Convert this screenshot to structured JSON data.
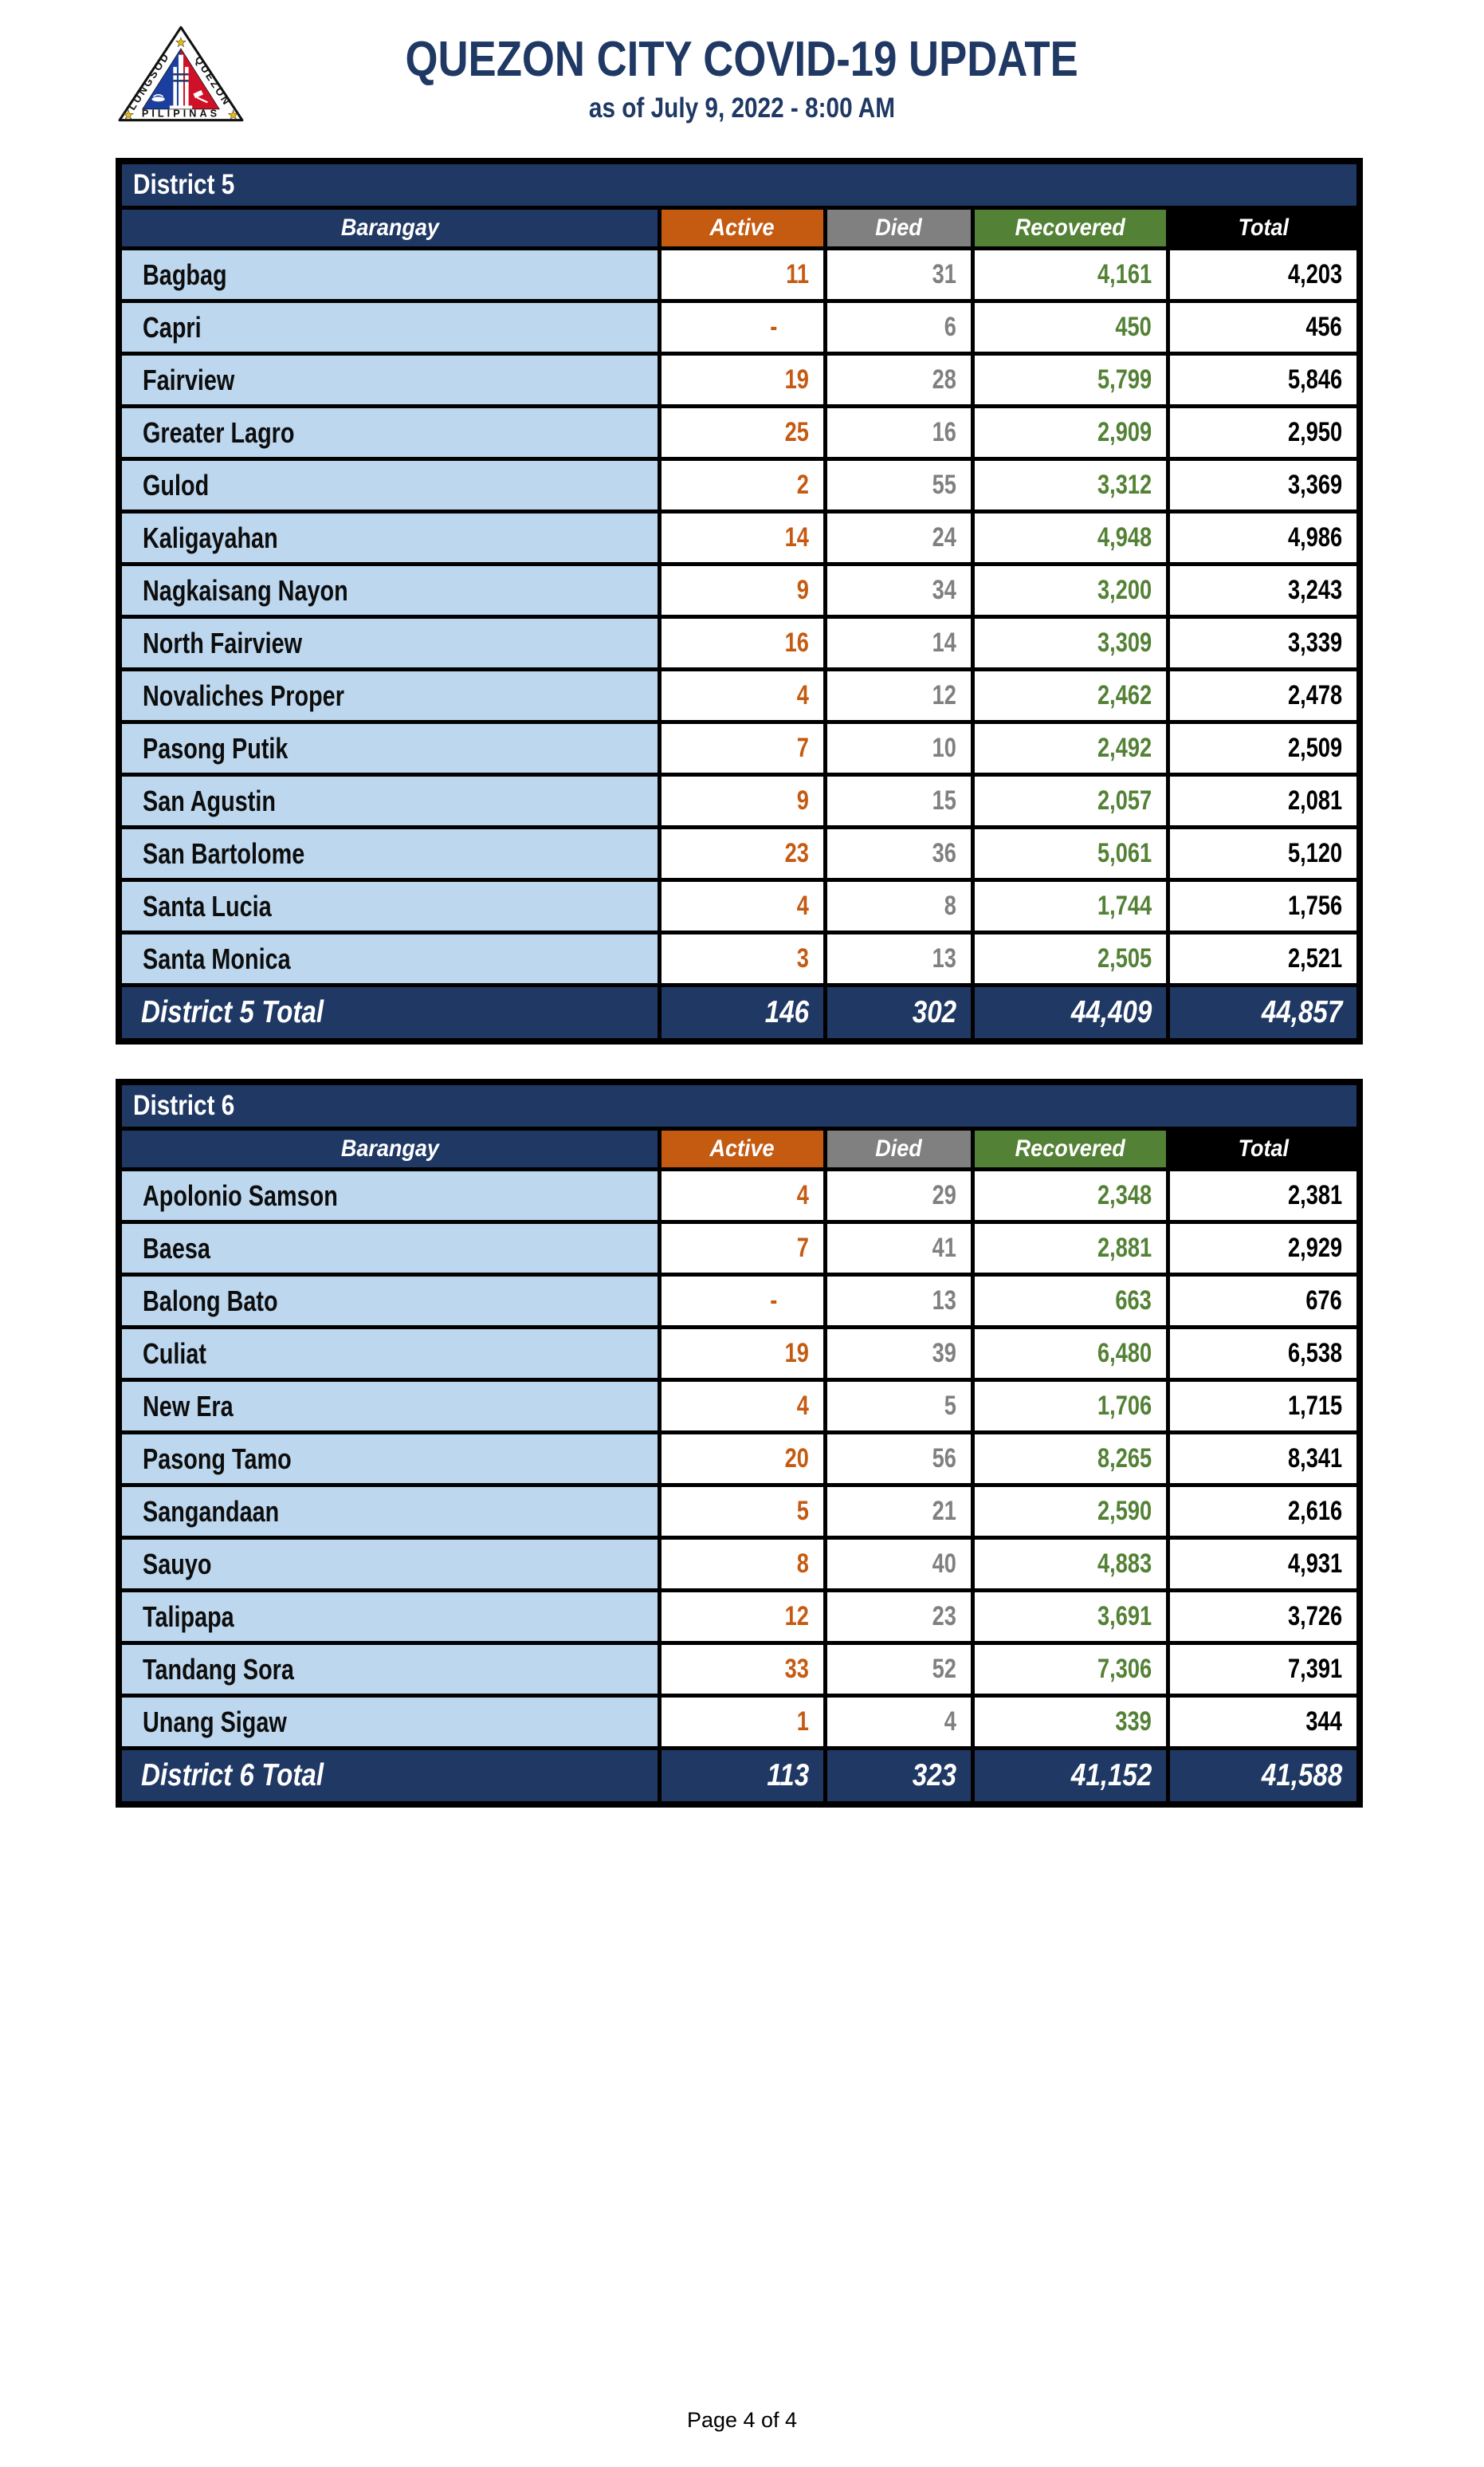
{
  "page": {
    "title": "QUEZON CITY COVID-19 UPDATE",
    "subtitle": "as of July 9, 2022 - 8:00 AM",
    "footer": "Page 4 of 4"
  },
  "logo": {
    "texts": {
      "left": "LUNGSOD",
      "right": "QUEZON",
      "bottom": "PILIPINAS"
    }
  },
  "columns": [
    "Barangay",
    "Active",
    "Died",
    "Recovered",
    "Total"
  ],
  "colors": {
    "navy": "#1F3864",
    "orange": "#C55A11",
    "gray": "#808080",
    "green": "#538135",
    "row_blue": "#BDD7EE",
    "black": "#000000"
  },
  "tables": [
    {
      "district": "District 5",
      "rows": [
        {
          "name": "Bagbag",
          "active": "11",
          "died": "31",
          "recovered": "4,161",
          "total": "4,203"
        },
        {
          "name": "Capri",
          "active": "-",
          "died": "6",
          "recovered": "450",
          "total": "456"
        },
        {
          "name": "Fairview",
          "active": "19",
          "died": "28",
          "recovered": "5,799",
          "total": "5,846"
        },
        {
          "name": "Greater Lagro",
          "active": "25",
          "died": "16",
          "recovered": "2,909",
          "total": "2,950"
        },
        {
          "name": "Gulod",
          "active": "2",
          "died": "55",
          "recovered": "3,312",
          "total": "3,369"
        },
        {
          "name": "Kaligayahan",
          "active": "14",
          "died": "24",
          "recovered": "4,948",
          "total": "4,986"
        },
        {
          "name": "Nagkaisang Nayon",
          "active": "9",
          "died": "34",
          "recovered": "3,200",
          "total": "3,243"
        },
        {
          "name": "North Fairview",
          "active": "16",
          "died": "14",
          "recovered": "3,309",
          "total": "3,339"
        },
        {
          "name": "Novaliches Proper",
          "active": "4",
          "died": "12",
          "recovered": "2,462",
          "total": "2,478"
        },
        {
          "name": "Pasong Putik",
          "active": "7",
          "died": "10",
          "recovered": "2,492",
          "total": "2,509"
        },
        {
          "name": "San Agustin",
          "active": "9",
          "died": "15",
          "recovered": "2,057",
          "total": "2,081"
        },
        {
          "name": "San Bartolome",
          "active": "23",
          "died": "36",
          "recovered": "5,061",
          "total": "5,120"
        },
        {
          "name": "Santa Lucia",
          "active": "4",
          "died": "8",
          "recovered": "1,744",
          "total": "1,756"
        },
        {
          "name": "Santa Monica",
          "active": "3",
          "died": "13",
          "recovered": "2,505",
          "total": "2,521"
        }
      ],
      "total": {
        "label": "District 5 Total",
        "active": "146",
        "died": "302",
        "recovered": "44,409",
        "total": "44,857"
      }
    },
    {
      "district": "District 6",
      "rows": [
        {
          "name": "Apolonio Samson",
          "active": "4",
          "died": "29",
          "recovered": "2,348",
          "total": "2,381"
        },
        {
          "name": "Baesa",
          "active": "7",
          "died": "41",
          "recovered": "2,881",
          "total": "2,929"
        },
        {
          "name": "Balong Bato",
          "active": "-",
          "died": "13",
          "recovered": "663",
          "total": "676"
        },
        {
          "name": "Culiat",
          "active": "19",
          "died": "39",
          "recovered": "6,480",
          "total": "6,538"
        },
        {
          "name": "New Era",
          "active": "4",
          "died": "5",
          "recovered": "1,706",
          "total": "1,715"
        },
        {
          "name": "Pasong Tamo",
          "active": "20",
          "died": "56",
          "recovered": "8,265",
          "total": "8,341"
        },
        {
          "name": "Sangandaan",
          "active": "5",
          "died": "21",
          "recovered": "2,590",
          "total": "2,616"
        },
        {
          "name": "Sauyo",
          "active": "8",
          "died": "40",
          "recovered": "4,883",
          "total": "4,931"
        },
        {
          "name": "Talipapa",
          "active": "12",
          "died": "23",
          "recovered": "3,691",
          "total": "3,726"
        },
        {
          "name": "Tandang Sora",
          "active": "33",
          "died": "52",
          "recovered": "7,306",
          "total": "7,391"
        },
        {
          "name": "Unang Sigaw",
          "active": "1",
          "died": "4",
          "recovered": "339",
          "total": "344"
        }
      ],
      "total": {
        "label": "District 6 Total",
        "active": "113",
        "died": "323",
        "recovered": "41,152",
        "total": "41,588"
      }
    }
  ]
}
